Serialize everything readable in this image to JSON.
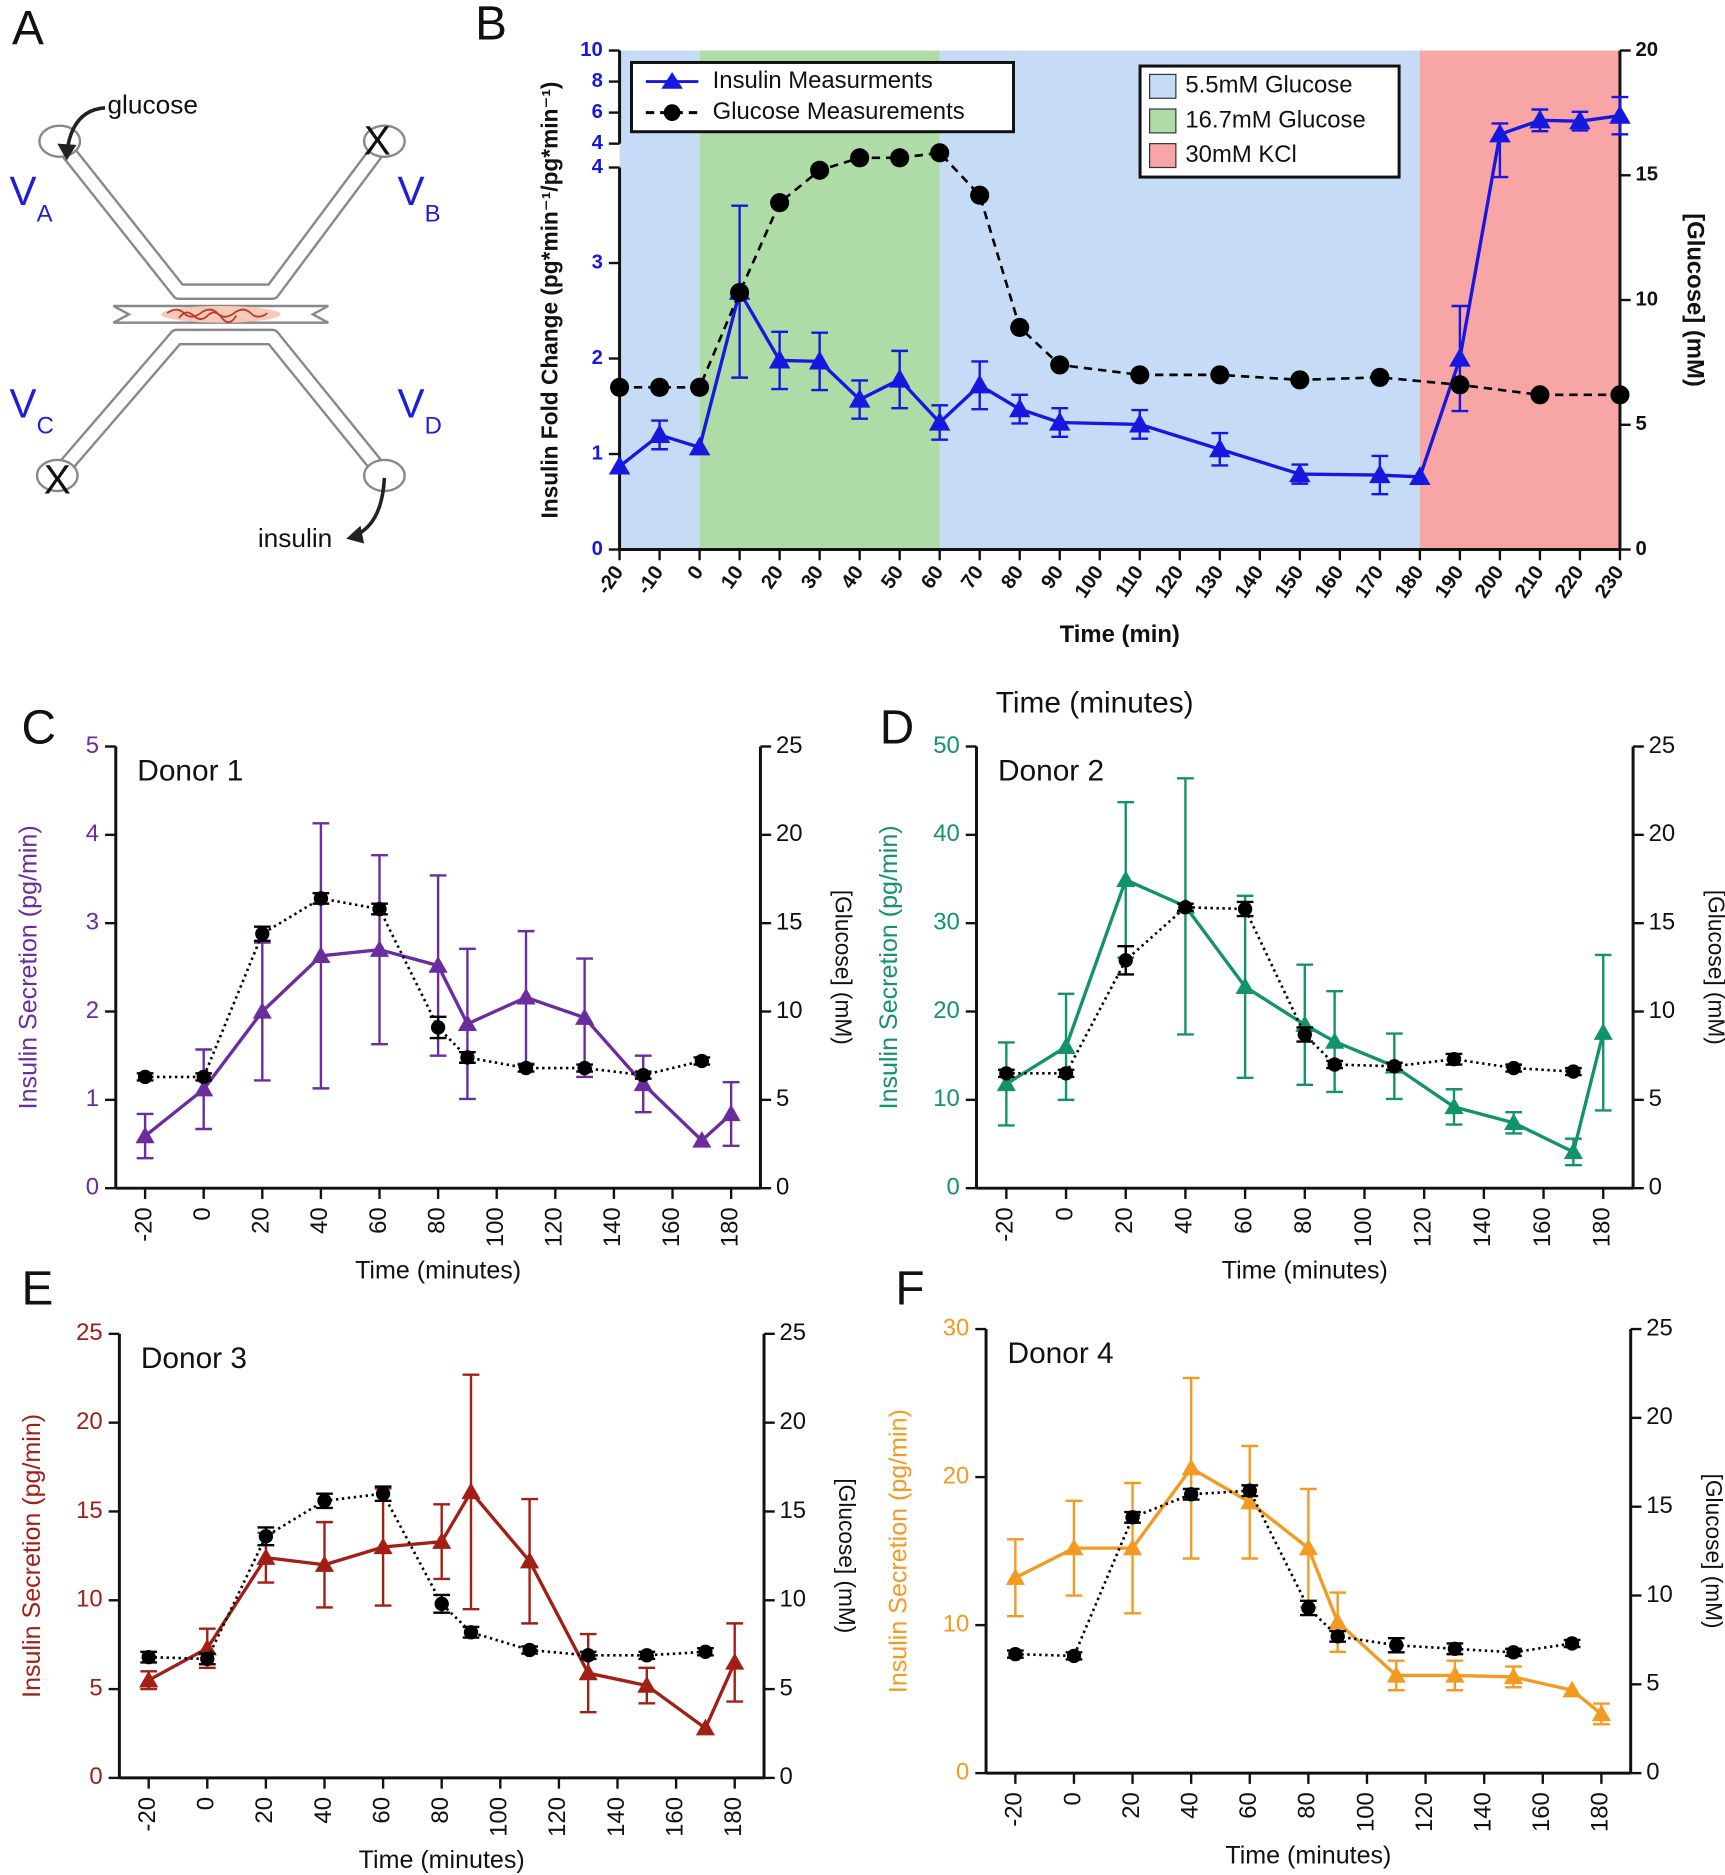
{
  "diagram": {
    "panel": "A",
    "glucose": "glucose",
    "insulin": "insulin",
    "valves": [
      {
        "main": "V",
        "sub": "A"
      },
      {
        "main": "V",
        "sub": "B"
      },
      {
        "main": "V",
        "sub": "C"
      },
      {
        "main": "V",
        "sub": "D"
      }
    ],
    "closed": [
      "X",
      "X"
    ]
  },
  "chart_data": [
    {
      "panel": "B",
      "type": "line",
      "x_label": "Time (min)",
      "y_label": "Insulin Fold Change (pg*min⁻¹/pg*min⁻¹)",
      "y2_label": "[Glucose] (mM)",
      "xlim": [
        -20,
        230
      ],
      "xticks": [
        -20,
        -10,
        0,
        10,
        20,
        30,
        40,
        50,
        60,
        70,
        80,
        90,
        100,
        110,
        120,
        130,
        140,
        150,
        160,
        170,
        180,
        190,
        200,
        210,
        220,
        230
      ],
      "ylim": [
        0,
        4
      ],
      "yticks": [
        0,
        1,
        2,
        3,
        4
      ],
      "ylim_upper": [
        4,
        10
      ],
      "yticks_upper": [
        4,
        6,
        8,
        10
      ],
      "y2lim": [
        0,
        20
      ],
      "y2ticks": [
        0,
        5,
        10,
        15,
        20
      ],
      "regions": [
        {
          "name": "5.5mM Glucose",
          "color": "#c6dbf6",
          "spans": [
            [
              -20,
              0
            ],
            [
              60,
              180
            ]
          ]
        },
        {
          "name": "16.7mM Glucose",
          "color": "#aedba6",
          "spans": [
            [
              0,
              60
            ]
          ]
        },
        {
          "name": "30mM KCl",
          "color": "#f7a5a5",
          "spans": [
            [
              180,
              230
            ]
          ]
        }
      ],
      "series": [
        {
          "name": "Insulin Measurments",
          "color": "#1717e0",
          "marker": "triangle",
          "linestyle": "solid",
          "x": [
            -20,
            -10,
            0,
            10,
            20,
            30,
            40,
            50,
            60,
            70,
            80,
            90,
            110,
            130,
            150,
            170,
            180,
            190,
            200,
            210,
            220,
            230
          ],
          "values": [
            0.87,
            1.2,
            1.07,
            2.7,
            1.98,
            1.97,
            1.57,
            1.78,
            1.33,
            1.72,
            1.47,
            1.33,
            1.31,
            1.05,
            0.79,
            0.78,
            0.76,
            2.0,
            4.6,
            5.5,
            5.45,
            5.8
          ],
          "errors": [
            null,
            0.15,
            null,
            0.9,
            0.3,
            0.3,
            0.2,
            0.3,
            0.18,
            0.25,
            0.15,
            0.15,
            0.15,
            0.17,
            0.1,
            0.2,
            null,
            0.55,
            0.7,
            0.7,
            0.6,
            1.2
          ]
        },
        {
          "name": "Glucose Measurements",
          "color": "#000000",
          "marker": "circle",
          "linestyle": "dashed",
          "axis": "y2",
          "x": [
            -20,
            -10,
            0,
            10,
            20,
            30,
            40,
            50,
            60,
            70,
            80,
            90,
            110,
            130,
            150,
            170,
            190,
            210,
            230
          ],
          "values": [
            6.5,
            6.5,
            6.5,
            10.3,
            13.9,
            15.2,
            15.7,
            15.7,
            15.9,
            14.2,
            8.9,
            7.4,
            7.0,
            7.0,
            6.8,
            6.9,
            6.6,
            6.2,
            6.2
          ]
        }
      ]
    },
    {
      "panel": "C",
      "type": "line",
      "title": "Donor 1",
      "x_label": "Time (minutes)",
      "y_label": "Insulin Secretion (pg/min)",
      "y2_label": "[Glucose] (mM)",
      "xlim": [
        -30,
        190
      ],
      "xticks": [
        -20,
        0,
        20,
        40,
        60,
        80,
        100,
        120,
        140,
        160,
        180
      ],
      "ylim": [
        0,
        5
      ],
      "yticks": [
        0,
        1,
        2,
        3,
        4,
        5
      ],
      "y2lim": [
        0,
        25
      ],
      "y2ticks": [
        0,
        5,
        10,
        15,
        20,
        25
      ],
      "series": [
        {
          "color": "#6a2c9e",
          "marker": "triangle",
          "linestyle": "solid",
          "x": [
            -20,
            0,
            20,
            40,
            60,
            80,
            90,
            110,
            130,
            150,
            170,
            180
          ],
          "values": [
            0.59,
            1.12,
            2.0,
            2.63,
            2.7,
            2.52,
            1.86,
            2.16,
            1.93,
            1.18,
            0.54,
            0.84
          ],
          "errors": [
            0.25,
            0.45,
            0.78,
            1.5,
            1.07,
            1.02,
            0.85,
            0.75,
            0.67,
            0.32,
            null,
            0.36
          ]
        },
        {
          "color": "#000000",
          "marker": "circle",
          "linestyle": "dotted",
          "axis": "y2",
          "x": [
            -20,
            0,
            20,
            40,
            60,
            80,
            90,
            110,
            130,
            150,
            170
          ],
          "values": [
            6.3,
            6.3,
            14.4,
            16.4,
            15.8,
            9.1,
            7.4,
            6.8,
            6.8,
            6.4,
            7.2
          ],
          "errors": [
            0.2,
            0.2,
            0.4,
            0.3,
            0.3,
            0.6,
            0.3,
            0.2,
            0.2,
            0.2,
            0.2
          ]
        }
      ]
    },
    {
      "panel": "D",
      "type": "line",
      "title": "Donor 2",
      "annotation": "Time (minutes)",
      "x_label": "Time (minutes)",
      "y_label": "Insulin Secretion (pg/min)",
      "y2_label": "[Glucose] (mM)",
      "xlim": [
        -30,
        190
      ],
      "xticks": [
        -20,
        0,
        20,
        40,
        60,
        80,
        100,
        120,
        140,
        160,
        180
      ],
      "ylim": [
        0,
        50
      ],
      "yticks": [
        0,
        10,
        20,
        30,
        40,
        50
      ],
      "y2lim": [
        0,
        25
      ],
      "y2ticks": [
        0,
        5,
        10,
        15,
        20,
        25
      ],
      "series": [
        {
          "color": "#13936a",
          "marker": "triangle",
          "linestyle": "solid",
          "x": [
            -20,
            0,
            20,
            40,
            60,
            80,
            90,
            110,
            130,
            150,
            170,
            180
          ],
          "values": [
            11.8,
            16.0,
            34.9,
            31.9,
            22.8,
            18.5,
            16.6,
            13.8,
            9.2,
            7.4,
            4.1,
            17.6
          ],
          "errors": [
            4.7,
            6.0,
            8.8,
            14.5,
            10.3,
            6.8,
            5.7,
            3.7,
            2.0,
            1.2,
            1.5,
            8.8
          ]
        },
        {
          "color": "#000000",
          "marker": "circle",
          "linestyle": "dotted",
          "axis": "y2",
          "x": [
            -20,
            0,
            20,
            40,
            60,
            80,
            90,
            110,
            130,
            150,
            170
          ],
          "values": [
            6.5,
            6.5,
            12.9,
            15.9,
            15.8,
            8.7,
            7.0,
            6.9,
            7.3,
            6.8,
            6.6
          ],
          "errors": [
            0.2,
            0.2,
            0.8,
            0.2,
            0.4,
            0.4,
            0.2,
            0.2,
            0.3,
            0.2,
            0.2
          ]
        }
      ]
    },
    {
      "panel": "E",
      "type": "line",
      "title": "Donor 3",
      "x_label": "Time (minutes)",
      "y_label": "Insulin Secretion (pg/min)",
      "y2_label": "[Glucose] (mM)",
      "xlim": [
        -30,
        190
      ],
      "xticks": [
        -20,
        0,
        20,
        40,
        60,
        80,
        100,
        120,
        140,
        160,
        180
      ],
      "ylim": [
        0,
        25
      ],
      "yticks": [
        0,
        5,
        10,
        15,
        20,
        25
      ],
      "y2lim": [
        0,
        25
      ],
      "y2ticks": [
        0,
        5,
        10,
        15,
        20,
        25
      ],
      "series": [
        {
          "color": "#a21f16",
          "marker": "triangle",
          "linestyle": "solid",
          "x": [
            -20,
            0,
            20,
            40,
            60,
            80,
            90,
            110,
            130,
            150,
            170,
            180
          ],
          "values": [
            5.5,
            7.3,
            12.4,
            12.0,
            13.0,
            13.3,
            16.1,
            12.2,
            5.9,
            5.2,
            2.8,
            6.5
          ],
          "errors": [
            0.5,
            1.1,
            1.4,
            2.4,
            3.3,
            2.1,
            6.6,
            3.5,
            2.2,
            1.0,
            null,
            2.2
          ]
        },
        {
          "color": "#000000",
          "marker": "circle",
          "linestyle": "dotted",
          "axis": "y2",
          "x": [
            -20,
            0,
            20,
            40,
            60,
            80,
            90,
            110,
            130,
            150,
            170
          ],
          "values": [
            6.8,
            6.7,
            13.6,
            15.6,
            16.0,
            9.8,
            8.2,
            7.2,
            6.9,
            6.9,
            7.1
          ],
          "errors": [
            0.3,
            0.3,
            0.5,
            0.4,
            0.4,
            0.5,
            0.3,
            0.2,
            0.2,
            0.2,
            0.2
          ]
        }
      ]
    },
    {
      "panel": "F",
      "type": "line",
      "title": "Donor 4",
      "x_label": "Time (minutes)",
      "y_label": "Insulin Secretion (pg/min)",
      "y2_label": "[Glucose] (mM)",
      "xlim": [
        -30,
        190
      ],
      "xticks": [
        -20,
        0,
        20,
        40,
        60,
        80,
        100,
        120,
        140,
        160,
        180
      ],
      "ylim": [
        0,
        30
      ],
      "yticks": [
        0,
        10,
        20,
        30
      ],
      "y2lim": [
        0,
        25
      ],
      "y2ticks": [
        0,
        5,
        10,
        15,
        20,
        25
      ],
      "series": [
        {
          "color": "#f39a22",
          "marker": "triangle",
          "linestyle": "solid",
          "x": [
            -20,
            0,
            20,
            40,
            60,
            80,
            90,
            110,
            130,
            150,
            170,
            180
          ],
          "values": [
            13.2,
            15.2,
            15.2,
            20.6,
            18.3,
            15.2,
            10.2,
            6.6,
            6.6,
            6.5,
            5.6,
            4.0
          ],
          "errors": [
            2.6,
            3.2,
            4.4,
            6.1,
            3.8,
            4.0,
            2.0,
            1.0,
            1.0,
            0.7,
            null,
            0.7
          ]
        },
        {
          "color": "#000000",
          "marker": "circle",
          "linestyle": "dotted",
          "axis": "y2",
          "x": [
            -20,
            0,
            20,
            40,
            60,
            80,
            90,
            110,
            130,
            150,
            170
          ],
          "values": [
            6.7,
            6.6,
            14.4,
            15.7,
            15.9,
            9.3,
            7.7,
            7.2,
            7.0,
            6.8,
            7.3
          ],
          "errors": [
            0.2,
            0.2,
            0.3,
            0.3,
            0.3,
            0.4,
            0.3,
            0.4,
            0.3,
            0.2,
            0.2
          ]
        }
      ]
    }
  ]
}
